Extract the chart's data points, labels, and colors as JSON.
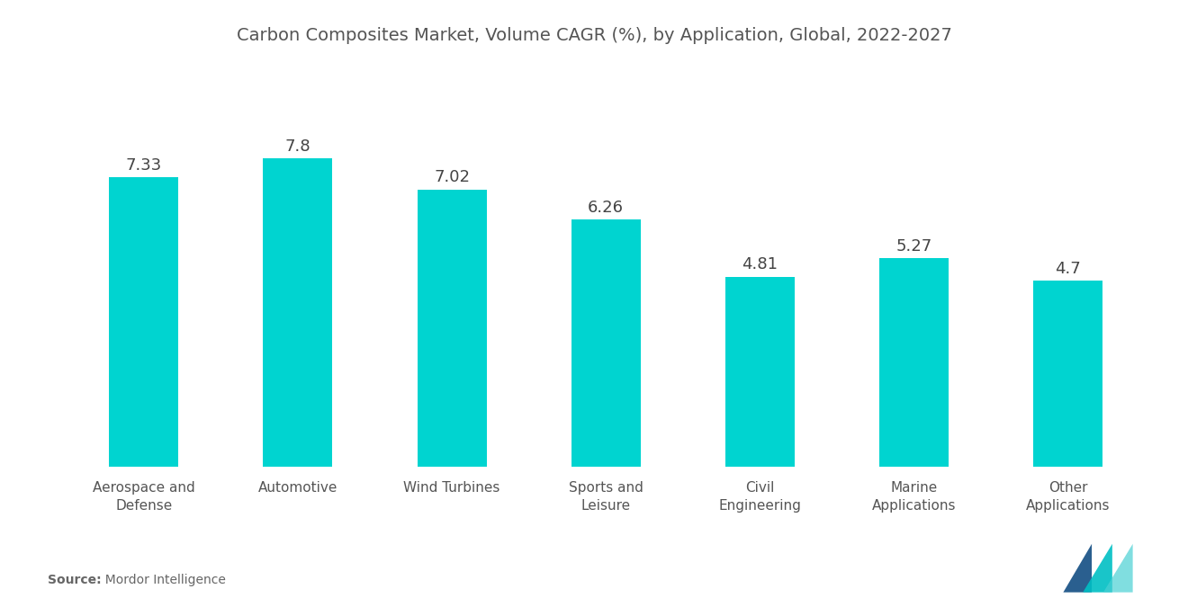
{
  "title": "Carbon Composites Market, Volume CAGR (%), by Application, Global, 2022-2027",
  "categories": [
    "Aerospace and\nDefense",
    "Automotive",
    "Wind Turbines",
    "Sports and\nLeisure",
    "Civil\nEngineering",
    "Marine\nApplications",
    "Other\nApplications"
  ],
  "values": [
    7.33,
    7.8,
    7.02,
    6.26,
    4.81,
    5.27,
    4.7
  ],
  "bar_color": "#00D4D0",
  "title_color": "#555555",
  "label_color": "#444444",
  "tick_label_color": "#555555",
  "source_bold": "Source:",
  "source_normal": "  Mordor Intelligence",
  "ylim": [
    0,
    10.0
  ],
  "bar_width": 0.45,
  "value_fontsize": 13,
  "xlabel_fontsize": 11,
  "title_fontsize": 14,
  "background_color": "#ffffff"
}
